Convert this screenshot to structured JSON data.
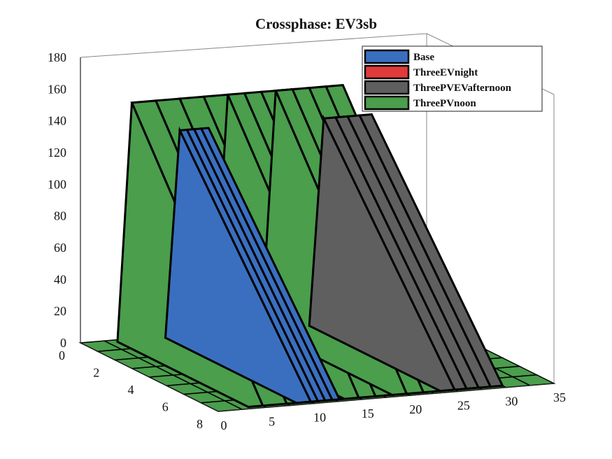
{
  "chart_data": {
    "type": "surface3d",
    "title": "Crossphase: EV3sb",
    "xlabel": "",
    "ylabel": "",
    "zlabel": "",
    "x_ticks": [
      "0",
      "5",
      "10",
      "15",
      "20",
      "25",
      "30",
      "35"
    ],
    "y_ticks": [
      "0",
      "2",
      "4",
      "6",
      "8"
    ],
    "z_ticks": [
      "0",
      "20",
      "40",
      "60",
      "80",
      "100",
      "120",
      "140",
      "160",
      "180"
    ],
    "xlim": [
      0,
      35
    ],
    "ylim": [
      0,
      8
    ],
    "zlim": [
      0,
      180
    ],
    "legend_position": "top-right",
    "series": [
      {
        "name": "Base",
        "color": "#3a6fc0"
      },
      {
        "name": "ThreeEVnight",
        "color": "#e23a3a"
      },
      {
        "name": "ThreePVEVafternoon",
        "color": "#5f5f5f"
      },
      {
        "name": "ThreePVnoon",
        "color": "#4a9e4c"
      }
    ],
    "surface_note": "peaks",
    "peaks": [
      {
        "series": "ThreePVnoon",
        "x_range": [
          5,
          15
        ],
        "z_max": 150
      },
      {
        "series": "ThreePVnoon",
        "x_range": [
          15,
          22
        ],
        "z_max": 150
      },
      {
        "series": "ThreePVnoon",
        "x_range": [
          20,
          27
        ],
        "z_max": 150
      },
      {
        "series": "ThreePVEVafternoon",
        "x_range": [
          25,
          30
        ],
        "z_max": 130
      },
      {
        "series": "Base",
        "x_range": [
          10,
          13
        ],
        "z_max": 130
      }
    ]
  }
}
